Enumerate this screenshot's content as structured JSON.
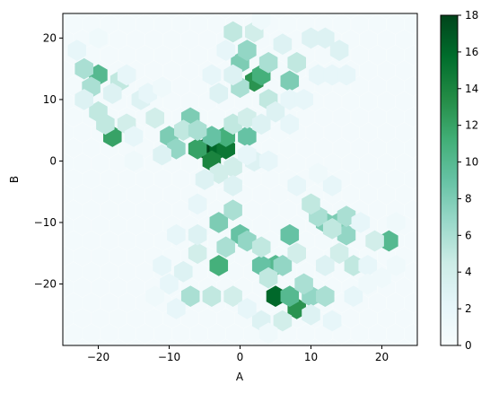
{
  "chart_data": {
    "type": "heatmap",
    "subtype": "hexbin",
    "xlabel": "A",
    "ylabel": "B",
    "xlim": [
      -25,
      25
    ],
    "ylim": [
      -30,
      24
    ],
    "xticks": [
      -20,
      -10,
      0,
      10,
      20
    ],
    "yticks": [
      -20,
      -10,
      0,
      10,
      20
    ],
    "grid": false,
    "colormap": "BuGn",
    "color_low": "#f7fcfd",
    "color_high": "#00441b",
    "colorbar": {
      "min": 0,
      "max": 18,
      "ticks": [
        0,
        2,
        4,
        6,
        8,
        10,
        12,
        14,
        16,
        18
      ]
    },
    "cells": [
      {
        "x": -5,
        "y": 2,
        "value": 18
      },
      {
        "x": -3,
        "y": 2,
        "value": 16
      },
      {
        "x": -2,
        "y": 2,
        "value": 15
      },
      {
        "x": -4,
        "y": 0,
        "value": 14
      },
      {
        "x": 5,
        "y": -22,
        "value": 16
      },
      {
        "x": 8,
        "y": -24,
        "value": 13
      },
      {
        "x": -18,
        "y": 4,
        "value": 12
      },
      {
        "x": -6,
        "y": 2,
        "value": 12
      },
      {
        "x": -2,
        "y": 4,
        "value": 11
      },
      {
        "x": 2,
        "y": 13,
        "value": 13
      },
      {
        "x": 3,
        "y": 14,
        "value": 11
      },
      {
        "x": -20,
        "y": 14,
        "value": 10
      },
      {
        "x": -3,
        "y": -17,
        "value": 11
      },
      {
        "x": 5,
        "y": -17,
        "value": 10
      },
      {
        "x": 7,
        "y": -22,
        "value": 10
      },
      {
        "x": 21,
        "y": -13,
        "value": 10
      },
      {
        "x": 0,
        "y": -12,
        "value": 9
      },
      {
        "x": 7,
        "y": -12,
        "value": 9
      },
      {
        "x": -10,
        "y": 4,
        "value": 8
      },
      {
        "x": -7,
        "y": 7,
        "value": 8
      },
      {
        "x": -4,
        "y": 4,
        "value": 9
      },
      {
        "x": 1,
        "y": 4,
        "value": 9
      },
      {
        "x": 14,
        "y": -10,
        "value": 8
      },
      {
        "x": 12,
        "y": -10,
        "value": 8
      },
      {
        "x": 3,
        "y": -17,
        "value": 9
      },
      {
        "x": 7,
        "y": 13,
        "value": 8
      },
      {
        "x": 0,
        "y": 16,
        "value": 8
      },
      {
        "x": -3,
        "y": -10,
        "value": 8
      },
      {
        "x": 15,
        "y": -12,
        "value": 7
      },
      {
        "x": -9,
        "y": 2,
        "value": 7
      },
      {
        "x": 1,
        "y": 18,
        "value": 7
      },
      {
        "x": 10,
        "y": -22,
        "value": 7
      },
      {
        "x": 12,
        "y": -22,
        "value": 6
      },
      {
        "x": -22,
        "y": 15,
        "value": 6
      },
      {
        "x": -21,
        "y": 12,
        "value": 6
      },
      {
        "x": -17,
        "y": 13,
        "value": 5
      },
      {
        "x": -20,
        "y": 8,
        "value": 5
      },
      {
        "x": -19,
        "y": 6,
        "value": 5
      },
      {
        "x": -16,
        "y": 6,
        "value": 4
      },
      {
        "x": -8,
        "y": 5,
        "value": 5
      },
      {
        "x": -6,
        "y": 5,
        "value": 6
      },
      {
        "x": -1,
        "y": 6,
        "value": 5
      },
      {
        "x": 0,
        "y": 12,
        "value": 6
      },
      {
        "x": 4,
        "y": 16,
        "value": 6
      },
      {
        "x": -1,
        "y": 21,
        "value": 5
      },
      {
        "x": 2,
        "y": 21,
        "value": 4
      },
      {
        "x": 4,
        "y": 10,
        "value": 5
      },
      {
        "x": 8,
        "y": 16,
        "value": 5
      },
      {
        "x": -1,
        "y": -8,
        "value": 6
      },
      {
        "x": 1,
        "y": -13,
        "value": 7
      },
      {
        "x": -2,
        "y": -14,
        "value": 6
      },
      {
        "x": 3,
        "y": -14,
        "value": 5
      },
      {
        "x": 6,
        "y": -17,
        "value": 7
      },
      {
        "x": 9,
        "y": -20,
        "value": 6
      },
      {
        "x": 4,
        "y": -19,
        "value": 5
      },
      {
        "x": -7,
        "y": -22,
        "value": 6
      },
      {
        "x": -4,
        "y": -22,
        "value": 5
      },
      {
        "x": -1,
        "y": -22,
        "value": 4
      },
      {
        "x": 11,
        "y": -9,
        "value": 6
      },
      {
        "x": 13,
        "y": -11,
        "value": 5
      },
      {
        "x": 10,
        "y": -7,
        "value": 5
      },
      {
        "x": 15,
        "y": -9,
        "value": 6
      },
      {
        "x": 16,
        "y": -17,
        "value": 5
      },
      {
        "x": 19,
        "y": -13,
        "value": 4
      },
      {
        "x": 1,
        "y": 7,
        "value": 4
      },
      {
        "x": -12,
        "y": 7,
        "value": 4
      },
      {
        "x": -14,
        "y": 10,
        "value": 3
      },
      {
        "x": -11,
        "y": 1,
        "value": 3
      },
      {
        "x": -3,
        "y": -2,
        "value": 4
      },
      {
        "x": -1,
        "y": -1,
        "value": 4
      },
      {
        "x": 2,
        "y": 0,
        "value": 3
      },
      {
        "x": -5,
        "y": -3,
        "value": 3
      },
      {
        "x": -6,
        "y": -15,
        "value": 4
      },
      {
        "x": -8,
        "y": -18,
        "value": 3
      },
      {
        "x": 8,
        "y": -15,
        "value": 4
      },
      {
        "x": 14,
        "y": -15,
        "value": 4
      },
      {
        "x": 12,
        "y": -17,
        "value": 3
      },
      {
        "x": 6,
        "y": -26,
        "value": 4
      },
      {
        "x": 10,
        "y": -25,
        "value": 3
      },
      {
        "x": 3,
        "y": -26,
        "value": 3
      },
      {
        "x": -3,
        "y": 11,
        "value": 3
      },
      {
        "x": 6,
        "y": 19,
        "value": 3
      },
      {
        "x": 10,
        "y": 20,
        "value": 3
      },
      {
        "x": 12,
        "y": 20,
        "value": 3
      },
      {
        "x": 14,
        "y": 18,
        "value": 3
      },
      {
        "x": -18,
        "y": 11,
        "value": 3
      },
      {
        "x": -22,
        "y": 10,
        "value": 3
      },
      {
        "x": 3,
        "y": 6,
        "value": 3
      },
      {
        "x": 5,
        "y": 8,
        "value": 3
      },
      {
        "x": 7,
        "y": 10,
        "value": 2
      },
      {
        "x": 9,
        "y": 10,
        "value": 2
      },
      {
        "x": 11,
        "y": 14,
        "value": 2
      },
      {
        "x": 13,
        "y": 14,
        "value": 2
      },
      {
        "x": 15,
        "y": 14,
        "value": 2
      },
      {
        "x": -15,
        "y": 4,
        "value": 2
      },
      {
        "x": -13,
        "y": 11,
        "value": 2
      },
      {
        "x": -9,
        "y": -12,
        "value": 2
      },
      {
        "x": -6,
        "y": -12,
        "value": 3
      },
      {
        "x": -11,
        "y": -17,
        "value": 2
      },
      {
        "x": -10,
        "y": -20,
        "value": 2
      },
      {
        "x": 18,
        "y": -17,
        "value": 2
      },
      {
        "x": 22,
        "y": -17,
        "value": 1
      },
      {
        "x": 17,
        "y": -10,
        "value": 2
      },
      {
        "x": -15,
        "y": 0,
        "value": 1
      },
      {
        "x": -23,
        "y": 18,
        "value": 2
      },
      {
        "x": -16,
        "y": 14,
        "value": 2
      },
      {
        "x": 1,
        "y": 1,
        "value": 2
      },
      {
        "x": 4,
        "y": 0,
        "value": 2
      },
      {
        "x": 7,
        "y": 6,
        "value": 2
      },
      {
        "x": -1,
        "y": 14,
        "value": 3
      },
      {
        "x": -4,
        "y": 14,
        "value": 2
      },
      {
        "x": 3,
        "y": 23,
        "value": 1
      },
      {
        "x": -2,
        "y": 18,
        "value": 2
      },
      {
        "x": 8,
        "y": -4,
        "value": 2
      },
      {
        "x": 13,
        "y": -4,
        "value": 2
      },
      {
        "x": 11,
        "y": -2,
        "value": 1
      },
      {
        "x": -1,
        "y": -4,
        "value": 3
      },
      {
        "x": -6,
        "y": -7,
        "value": 2
      },
      {
        "x": 1,
        "y": -24,
        "value": 2
      },
      {
        "x": 4,
        "y": -28,
        "value": 1
      },
      {
        "x": 13,
        "y": -26,
        "value": 2
      },
      {
        "x": 16,
        "y": -22,
        "value": 2
      },
      {
        "x": -9,
        "y": -24,
        "value": 2
      },
      {
        "x": -12,
        "y": -22,
        "value": 1
      },
      {
        "x": 18,
        "y": -20,
        "value": 1
      },
      {
        "x": 20,
        "y": -19,
        "value": 1
      },
      {
        "x": 22,
        "y": -10,
        "value": 1
      },
      {
        "x": -20,
        "y": 20,
        "value": 1
      },
      {
        "x": -11,
        "y": 12,
        "value": 1
      }
    ]
  }
}
